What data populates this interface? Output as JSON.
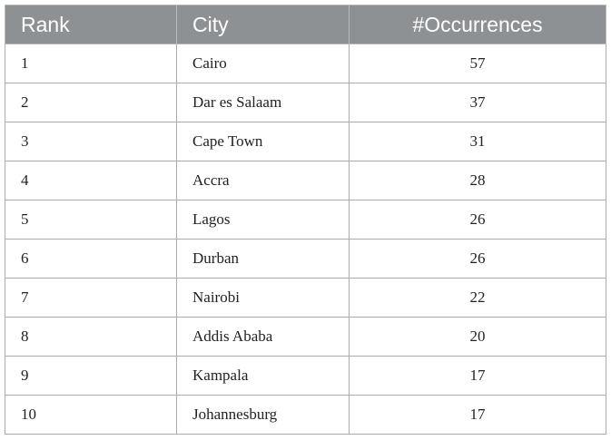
{
  "table": {
    "headers": {
      "rank": "Rank",
      "city": "City",
      "occurrences": "#Occurrences"
    },
    "rows": [
      {
        "rank": "1",
        "city": "Cairo",
        "occurrences": "57"
      },
      {
        "rank": "2",
        "city": "Dar es Salaam",
        "occurrences": "37"
      },
      {
        "rank": "3",
        "city": "Cape Town",
        "occurrences": "31"
      },
      {
        "rank": "4",
        "city": "Accra",
        "occurrences": "28"
      },
      {
        "rank": "5",
        "city": "Lagos",
        "occurrences": "26"
      },
      {
        "rank": "6",
        "city": "Durban",
        "occurrences": "26"
      },
      {
        "rank": "7",
        "city": "Nairobi",
        "occurrences": "22"
      },
      {
        "rank": "8",
        "city": "Addis Ababa",
        "occurrences": "20"
      },
      {
        "rank": "9",
        "city": "Kampala",
        "occurrences": "17"
      },
      {
        "rank": "10",
        "city": "Johannesburg",
        "occurrences": "17"
      }
    ]
  },
  "colors": {
    "header_background": "#8e9194",
    "header_text": "#ffffff",
    "grid_line": "#a9abad"
  }
}
